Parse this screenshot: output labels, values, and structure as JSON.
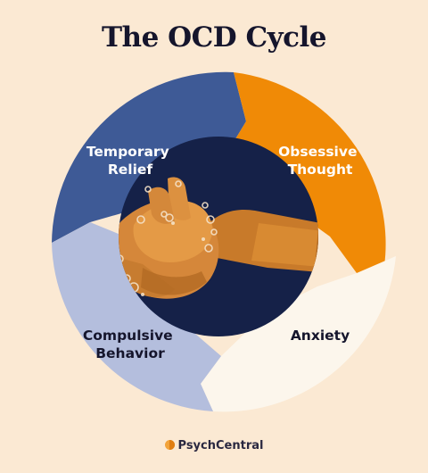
{
  "title": "The OCD Cycle",
  "segments": [
    {
      "label_lines": [
        "Temporary",
        "Relief"
      ],
      "color": "#3E5A96"
    },
    {
      "label_lines": [
        "Obsessive",
        "Thought"
      ],
      "color": "#F08A06"
    },
    {
      "label_lines": [
        "Anxiety"
      ],
      "color": "#FCF6EC"
    },
    {
      "label_lines": [
        "Compulsive",
        "Behavior"
      ],
      "color": "#B4BEDD"
    }
  ],
  "center_image": {
    "subject": "hands-washing-with-soap",
    "background": "#152148"
  },
  "logo": {
    "text": "PsychCentral",
    "color": "#F2A33A"
  }
}
